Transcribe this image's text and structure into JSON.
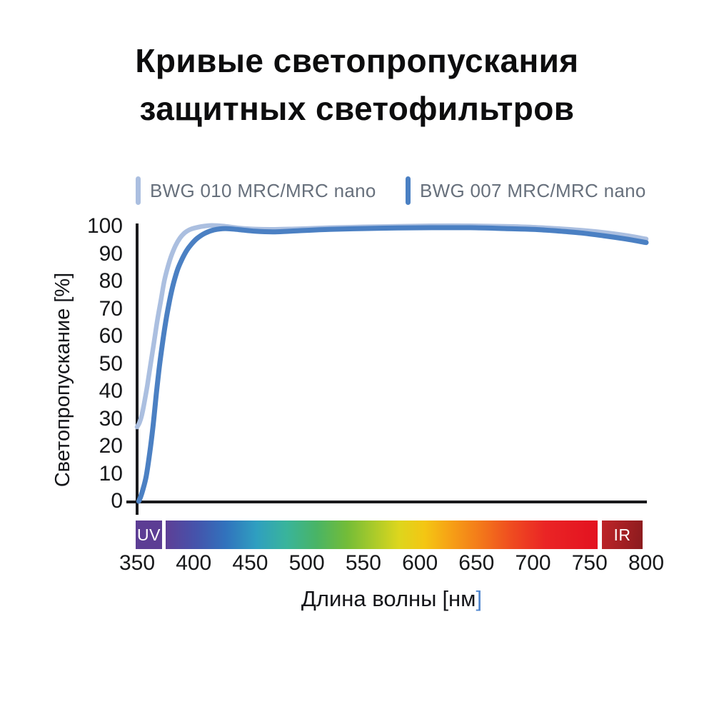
{
  "title": {
    "line1": "Кривые светопропускания",
    "line2": "защитных светофильтров"
  },
  "axes": {
    "ylabel": "Светопропускание",
    "ylabel_unit": "[%]",
    "xlabel": "Длина волны",
    "xlabel_unit_open": "[нм",
    "xlabel_unit_close": "]",
    "close_bracket_color": "#4f86ce",
    "axis_color": "#1a1a1c",
    "tick_color": "#17181a"
  },
  "chart_data": {
    "type": "line",
    "title": "Кривые светопропускания защитных светофильтров",
    "xlabel": "Длина волны [нм]",
    "ylabel": "Светопропускание [%]",
    "xlim": [
      350,
      800
    ],
    "ylim": [
      0,
      100
    ],
    "grid": false,
    "legend_position": "top",
    "x_ticks": [
      350,
      400,
      450,
      500,
      550,
      600,
      650,
      700,
      750,
      800
    ],
    "y_ticks": [
      0,
      10,
      20,
      30,
      40,
      50,
      60,
      70,
      80,
      90,
      100
    ],
    "series": [
      {
        "name": "BWG 010 MRC/MRC nano",
        "color": "#abbfe0",
        "width": 6.5,
        "points": [
          [
            350,
            27
          ],
          [
            352,
            28.5
          ],
          [
            354,
            31
          ],
          [
            356,
            35
          ],
          [
            359,
            42
          ],
          [
            362,
            50
          ],
          [
            365,
            58
          ],
          [
            368,
            66
          ],
          [
            371,
            73
          ],
          [
            374,
            80
          ],
          [
            377,
            85
          ],
          [
            380,
            89
          ],
          [
            384,
            93
          ],
          [
            388,
            95.8
          ],
          [
            392,
            97.6
          ],
          [
            396,
            98.7
          ],
          [
            400,
            99.3
          ],
          [
            408,
            100
          ],
          [
            416,
            100.3
          ],
          [
            426,
            100.1
          ],
          [
            440,
            99.4
          ],
          [
            455,
            99
          ],
          [
            472,
            98.9
          ],
          [
            492,
            99.1
          ],
          [
            520,
            99.5
          ],
          [
            550,
            99.8
          ],
          [
            580,
            100
          ],
          [
            610,
            100.2
          ],
          [
            645,
            100.2
          ],
          [
            675,
            100
          ],
          [
            700,
            99.7
          ],
          [
            722,
            99.2
          ],
          [
            742,
            98.6
          ],
          [
            762,
            97.8
          ],
          [
            782,
            96.7
          ],
          [
            800,
            95.4
          ]
        ]
      },
      {
        "name": "BWG 007 MRC/MRC nano",
        "color": "#4b80c3",
        "width": 7,
        "points": [
          [
            351.5,
            0
          ],
          [
            353,
            1.5
          ],
          [
            355,
            4
          ],
          [
            358,
            9
          ],
          [
            361,
            17
          ],
          [
            364,
            27
          ],
          [
            367,
            39
          ],
          [
            370,
            50
          ],
          [
            373,
            59
          ],
          [
            376,
            67
          ],
          [
            379,
            73.5
          ],
          [
            382,
            79
          ],
          [
            386,
            84.5
          ],
          [
            390,
            88.3
          ],
          [
            394,
            91.3
          ],
          [
            398,
            93.5
          ],
          [
            403,
            95.6
          ],
          [
            410,
            97.5
          ],
          [
            418,
            98.7
          ],
          [
            428,
            99.2
          ],
          [
            440,
            98.8
          ],
          [
            455,
            98.2
          ],
          [
            472,
            98
          ],
          [
            492,
            98.4
          ],
          [
            520,
            98.9
          ],
          [
            550,
            99.2
          ],
          [
            580,
            99.4
          ],
          [
            610,
            99.5
          ],
          [
            645,
            99.5
          ],
          [
            675,
            99.2
          ],
          [
            700,
            98.9
          ],
          [
            722,
            98.3
          ],
          [
            742,
            97.6
          ],
          [
            762,
            96.6
          ],
          [
            782,
            95.4
          ],
          [
            800,
            94.1
          ]
        ]
      }
    ],
    "spectrum_bar": {
      "uv_label": "UV",
      "ir_label": "IR",
      "uv_color": "#5c3d94",
      "ir_gradient": [
        "#bf2428",
        "#8a1b1e"
      ],
      "stops": [
        {
          "pos": 0.0,
          "color": "#5e3f96"
        },
        {
          "pos": 0.07,
          "color": "#4553ab"
        },
        {
          "pos": 0.14,
          "color": "#3173bd"
        },
        {
          "pos": 0.21,
          "color": "#2f9fc0"
        },
        {
          "pos": 0.28,
          "color": "#39b49b"
        },
        {
          "pos": 0.35,
          "color": "#49b465"
        },
        {
          "pos": 0.42,
          "color": "#73bc38"
        },
        {
          "pos": 0.48,
          "color": "#a8ca2b"
        },
        {
          "pos": 0.54,
          "color": "#ddd61d"
        },
        {
          "pos": 0.6,
          "color": "#f4c613"
        },
        {
          "pos": 0.66,
          "color": "#f6a016"
        },
        {
          "pos": 0.73,
          "color": "#f3781a"
        },
        {
          "pos": 0.8,
          "color": "#ef4c20"
        },
        {
          "pos": 0.88,
          "color": "#ea2425"
        },
        {
          "pos": 1.0,
          "color": "#e31220"
        }
      ]
    }
  }
}
